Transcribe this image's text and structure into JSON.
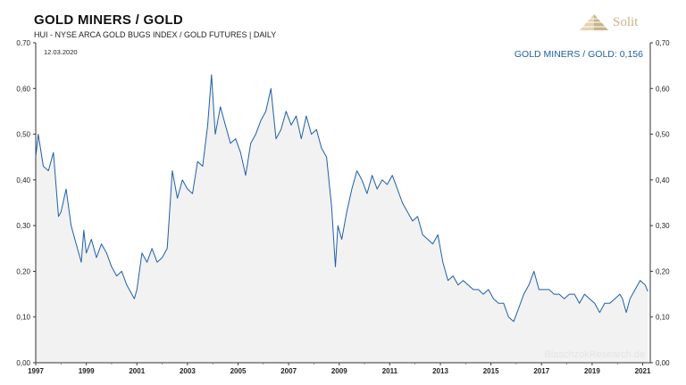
{
  "header": {
    "title": "GOLD MINERS / GOLD",
    "subtitle": "HUI - NYSE ARCA GOLD BUGS INDEX / GOLD FUTURES | DAILY",
    "brand": "Solit"
  },
  "chart_data": {
    "type": "line",
    "date_label": "12.03.2020",
    "value_label": "GOLD MINERS / GOLD: 0,156",
    "watermark": "BlaschzokResearch.de",
    "xlim": [
      1997,
      2021.3
    ],
    "ylim": [
      0,
      0.7
    ],
    "yticks": [
      "0,00",
      "0,10",
      "0,20",
      "0,30",
      "0,40",
      "0,50",
      "0,60",
      "0,70"
    ],
    "xticks": [
      "1997",
      "1999",
      "2001",
      "2003",
      "2005",
      "2007",
      "2009",
      "2011",
      "2013",
      "2015",
      "2017",
      "2019",
      "2021"
    ],
    "grid": false,
    "line_color": "#1f5fa8",
    "fill_color": "#f2f2f2",
    "series": [
      {
        "x": [
          1997.0,
          1997.1,
          1997.3,
          1997.5,
          1997.7,
          1997.9,
          1998.0,
          1998.2,
          1998.4,
          1998.6,
          1998.8,
          1998.9,
          1999.0,
          1999.2,
          1999.4,
          1999.6,
          1999.8,
          2000.0,
          2000.2,
          2000.4,
          2000.6,
          2000.8,
          2000.9,
          2001.0,
          2001.2,
          2001.4,
          2001.6,
          2001.8,
          2002.0,
          2002.2,
          2002.4,
          2002.6,
          2002.8,
          2003.0,
          2003.2,
          2003.4,
          2003.6,
          2003.8,
          2003.95,
          2004.1,
          2004.3,
          2004.5,
          2004.7,
          2004.9,
          2005.1,
          2005.3,
          2005.5,
          2005.7,
          2005.9,
          2006.1,
          2006.3,
          2006.5,
          2006.7,
          2006.9,
          2007.1,
          2007.3,
          2007.5,
          2007.7,
          2007.9,
          2008.1,
          2008.3,
          2008.5,
          2008.7,
          2008.85,
          2008.95,
          2009.1,
          2009.3,
          2009.5,
          2009.7,
          2009.9,
          2010.1,
          2010.3,
          2010.5,
          2010.7,
          2010.9,
          2011.1,
          2011.3,
          2011.5,
          2011.7,
          2011.9,
          2012.1,
          2012.3,
          2012.5,
          2012.7,
          2012.9,
          2013.1,
          2013.3,
          2013.5,
          2013.7,
          2013.9,
          2014.1,
          2014.3,
          2014.5,
          2014.7,
          2014.9,
          2015.1,
          2015.3,
          2015.5,
          2015.7,
          2015.9,
          2016.1,
          2016.3,
          2016.5,
          2016.7,
          2016.9,
          2017.1,
          2017.3,
          2017.5,
          2017.7,
          2017.9,
          2018.1,
          2018.3,
          2018.5,
          2018.7,
          2018.9,
          2019.1,
          2019.3,
          2019.5,
          2019.7,
          2019.9,
          2020.1,
          2020.2,
          2020.35,
          2020.5,
          2020.7,
          2020.9,
          2021.1,
          2021.2
        ],
        "y": [
          0.45,
          0.5,
          0.43,
          0.42,
          0.46,
          0.32,
          0.33,
          0.38,
          0.3,
          0.26,
          0.22,
          0.29,
          0.24,
          0.27,
          0.23,
          0.26,
          0.24,
          0.21,
          0.19,
          0.2,
          0.17,
          0.15,
          0.14,
          0.16,
          0.24,
          0.22,
          0.25,
          0.22,
          0.23,
          0.25,
          0.42,
          0.36,
          0.4,
          0.38,
          0.37,
          0.44,
          0.43,
          0.52,
          0.63,
          0.5,
          0.56,
          0.52,
          0.48,
          0.49,
          0.46,
          0.41,
          0.48,
          0.5,
          0.53,
          0.55,
          0.6,
          0.49,
          0.51,
          0.55,
          0.52,
          0.54,
          0.49,
          0.54,
          0.5,
          0.51,
          0.47,
          0.45,
          0.34,
          0.21,
          0.3,
          0.27,
          0.33,
          0.38,
          0.42,
          0.4,
          0.37,
          0.41,
          0.38,
          0.4,
          0.39,
          0.41,
          0.38,
          0.35,
          0.33,
          0.31,
          0.32,
          0.28,
          0.27,
          0.26,
          0.28,
          0.22,
          0.18,
          0.19,
          0.17,
          0.18,
          0.17,
          0.16,
          0.16,
          0.15,
          0.16,
          0.14,
          0.13,
          0.13,
          0.1,
          0.09,
          0.12,
          0.15,
          0.17,
          0.2,
          0.16,
          0.16,
          0.16,
          0.15,
          0.15,
          0.14,
          0.15,
          0.15,
          0.13,
          0.15,
          0.14,
          0.13,
          0.11,
          0.13,
          0.13,
          0.14,
          0.15,
          0.14,
          0.11,
          0.14,
          0.16,
          0.18,
          0.17,
          0.156
        ]
      }
    ]
  }
}
